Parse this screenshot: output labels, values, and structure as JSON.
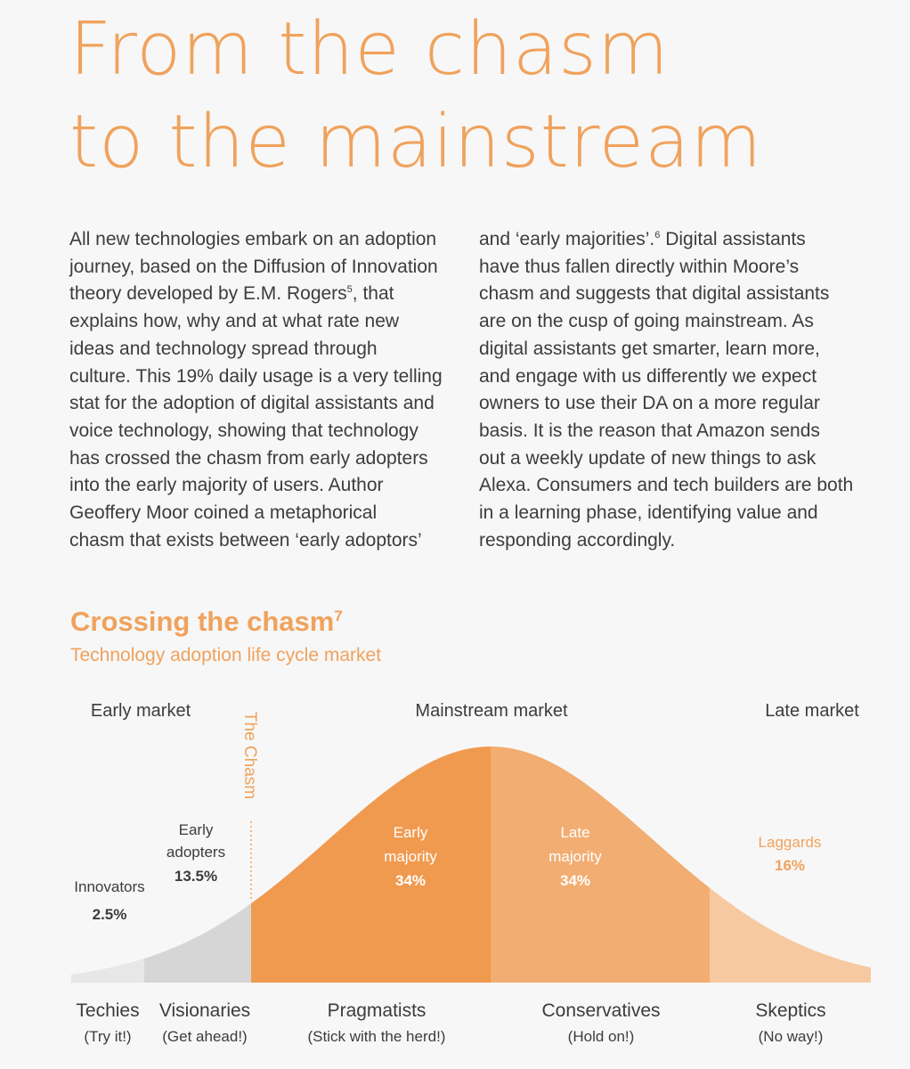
{
  "page": {
    "title_line1": "From the chasm",
    "title_line2": "to the mainstream",
    "col_left": [
      "All new technologies embark on an adoption",
      "journey, based on the Diffusion of Innovation",
      "theory developed by E.M. Rogers",
      "explains how, why and at what rate new",
      "ideas and technology spread through",
      "culture. This 19% daily usage is a very telling",
      "stat for the adoption of digital assistants and",
      "voice technology, showing that technology",
      "has crossed the chasm from early adopters",
      "into the early majority of users. Author",
      "Geoffery Moor coined a metaphorical",
      "chasm that exists between ‘early adoptors’"
    ],
    "footnote5": "5",
    "after_footnote5": ", that",
    "col_right_first": "and ‘early majorities’.",
    "footnote6": "6",
    "col_right_first_rest": " Digital assistants",
    "col_right": [
      "have thus fallen directly within Moore’s",
      "chasm and suggests that digital assistants",
      "are on the cusp of going mainstream. As",
      "digital assistants get smarter, learn more,",
      "and engage with us differently we expect",
      "owners to use their DA on a more regular",
      "basis. It is the reason that Amazon sends",
      "out a weekly update of new things to ask",
      "Alexa. Consumers and tech builders are both",
      "in a learning phase, identifying value and",
      "responding accordingly."
    ],
    "section_title": "Crossing the chasm",
    "footnote7": "7",
    "section_subtitle": "Technology adoption life cycle market"
  },
  "colors": {
    "accent": "#f0a25c",
    "innovators": "#e7e7e7",
    "early_adopters": "#d6d6d6",
    "early_majority": "#f09a50",
    "late_majority": "#f2ad72",
    "laggards": "#f7c9a0",
    "text": "#3c3c3c"
  },
  "chart_data": {
    "type": "area",
    "title": "Crossing the chasm",
    "subtitle": "Technology adoption life cycle market",
    "markets": [
      "Early market",
      "Mainstream market",
      "Late market"
    ],
    "chasm_label": "The Chasm",
    "segments": [
      {
        "name": "Innovators",
        "value_label": "2.5%",
        "value": 2.5,
        "persona": "Techies",
        "motto": "(Try it!)"
      },
      {
        "name": "Early adopters",
        "value_label": "13.5%",
        "value": 13.5,
        "persona": "Visionaries",
        "motto": "(Get ahead!)"
      },
      {
        "name": "Early majority",
        "value_label": "34%",
        "value": 34,
        "persona": "Pragmatists",
        "motto": "(Stick with the herd!)"
      },
      {
        "name": "Late majority",
        "value_label": "34%",
        "value": 34,
        "persona": "Conservatives",
        "motto": "(Hold on!)"
      },
      {
        "name": "Laggards",
        "value_label": "16%",
        "value": 16,
        "persona": "Skeptics",
        "motto": "(No way!)"
      }
    ]
  }
}
